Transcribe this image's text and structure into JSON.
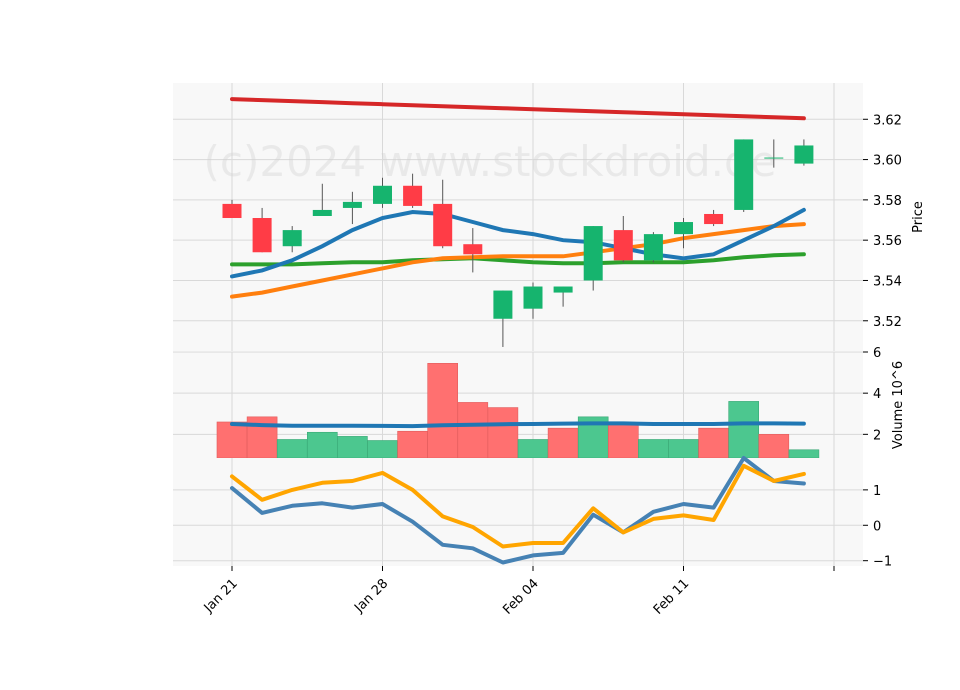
{
  "chart_data": {
    "type": "candlestick",
    "watermark": "(c)2024 www.stockdroid.de",
    "x_tick_labels": [
      "Jan 21",
      "Jan 28",
      "Feb 04",
      "Feb 11"
    ],
    "x_tick_index": [
      0,
      5,
      10,
      15
    ],
    "colors": {
      "up": "#16b46e",
      "down": "#ff3c46",
      "vol_up": "#4cc78f",
      "vol_down": "#ff7070",
      "ma_long": "#d62728",
      "ma_mid": "#2ca02c",
      "ma_short": "#ff7f0e",
      "ma_fast": "#1f77b4",
      "osc_a": "#4682b4",
      "osc_b": "#ffa500",
      "grid": "#d9d9d9",
      "panel_bg": "#f8f8f8"
    },
    "price": {
      "ylabel": "Price",
      "ylim": [
        3.505,
        3.638
      ],
      "yticks": [
        3.52,
        3.54,
        3.56,
        3.58,
        3.6,
        3.62
      ],
      "candles": [
        {
          "o": 3.578,
          "h": 3.58,
          "l": 3.571,
          "c": 3.571
        },
        {
          "o": 3.571,
          "h": 3.576,
          "l": 3.554,
          "c": 3.554
        },
        {
          "o": 3.557,
          "h": 3.567,
          "l": 3.554,
          "c": 3.565
        },
        {
          "o": 3.572,
          "h": 3.588,
          "l": 3.572,
          "c": 3.575
        },
        {
          "o": 3.576,
          "h": 3.584,
          "l": 3.568,
          "c": 3.579
        },
        {
          "o": 3.578,
          "h": 3.591,
          "l": 3.576,
          "c": 3.587
        },
        {
          "o": 3.587,
          "h": 3.593,
          "l": 3.576,
          "c": 3.577
        },
        {
          "o": 3.578,
          "h": 3.59,
          "l": 3.556,
          "c": 3.557
        },
        {
          "o": 3.558,
          "h": 3.566,
          "l": 3.544,
          "c": 3.553
        },
        {
          "o": 3.521,
          "h": 3.535,
          "l": 3.507,
          "c": 3.535
        },
        {
          "o": 3.526,
          "h": 3.539,
          "l": 3.521,
          "c": 3.537
        },
        {
          "o": 3.534,
          "h": 3.537,
          "l": 3.527,
          "c": 3.537
        },
        {
          "o": 3.54,
          "h": 3.567,
          "l": 3.535,
          "c": 3.567
        },
        {
          "o": 3.565,
          "h": 3.572,
          "l": 3.549,
          "c": 3.55
        },
        {
          "o": 3.55,
          "h": 3.564,
          "l": 3.549,
          "c": 3.563
        },
        {
          "o": 3.563,
          "h": 3.571,
          "l": 3.556,
          "c": 3.569
        },
        {
          "o": 3.573,
          "h": 3.575,
          "l": 3.567,
          "c": 3.568
        },
        {
          "o": 3.575,
          "h": 3.61,
          "l": 3.574,
          "c": 3.61
        },
        {
          "o": 3.601,
          "h": 3.61,
          "l": 3.596,
          "c": 3.601
        },
        {
          "o": 3.598,
          "h": 3.61,
          "l": 3.597,
          "c": 3.607
        }
      ],
      "series": [
        {
          "name": "ma_long",
          "values": [
            3.63,
            3.6295,
            3.629,
            3.6285,
            3.628,
            3.6275,
            3.627,
            3.6265,
            3.626,
            3.6255,
            3.625,
            3.6245,
            3.624,
            3.6235,
            3.623,
            3.6225,
            3.622,
            3.6215,
            3.621,
            3.6205
          ]
        },
        {
          "name": "ma_mid",
          "values": [
            3.548,
            3.548,
            3.548,
            3.5485,
            3.549,
            3.549,
            3.55,
            3.5505,
            3.551,
            3.55,
            3.549,
            3.5485,
            3.5485,
            3.549,
            3.549,
            3.549,
            3.55,
            3.5515,
            3.5525,
            3.553
          ]
        },
        {
          "name": "ma_short",
          "values": [
            3.532,
            3.534,
            3.537,
            3.54,
            3.543,
            3.546,
            3.549,
            3.551,
            3.5515,
            3.552,
            3.552,
            3.552,
            3.554,
            3.556,
            3.558,
            3.561,
            3.563,
            3.565,
            3.567,
            3.568
          ]
        },
        {
          "name": "ma_fast",
          "values": [
            3.542,
            3.545,
            3.55,
            3.557,
            3.565,
            3.571,
            3.574,
            3.573,
            3.569,
            3.565,
            3.563,
            3.56,
            3.559,
            3.556,
            3.553,
            3.551,
            3.553,
            3.56,
            3.567,
            3.575
          ]
        }
      ]
    },
    "volume": {
      "ylabel": "Volume  10^6",
      "ylim": [
        0.85,
        6.0
      ],
      "yticks": [
        2,
        4,
        6
      ],
      "bars": [
        2.6,
        2.85,
        1.75,
        2.1,
        1.9,
        1.7,
        2.15,
        5.45,
        3.55,
        3.3,
        1.75,
        2.3,
        2.85,
        2.55,
        1.75,
        1.75,
        2.3,
        3.6,
        2.0,
        1.25
      ],
      "bar_dir": [
        "down",
        "down",
        "up",
        "up",
        "up",
        "up",
        "down",
        "down",
        "down",
        "down",
        "up",
        "down",
        "up",
        "down",
        "up",
        "up",
        "down",
        "up",
        "down",
        "up"
      ],
      "avg": [
        2.5,
        2.45,
        2.42,
        2.42,
        2.42,
        2.41,
        2.4,
        2.44,
        2.47,
        2.49,
        2.5,
        2.52,
        2.53,
        2.53,
        2.5,
        2.5,
        2.5,
        2.53,
        2.53,
        2.52
      ]
    },
    "oscillator": {
      "ylim": [
        -1.15,
        1.9
      ],
      "yticks": [
        -1,
        0,
        1
      ],
      "series_a": [
        1.05,
        0.35,
        0.55,
        0.62,
        0.5,
        0.6,
        0.1,
        -0.55,
        -0.65,
        -1.05,
        -0.85,
        -0.78,
        0.3,
        -0.2,
        0.38,
        0.6,
        0.5,
        1.9,
        1.25,
        1.18
      ],
      "series_b": [
        1.38,
        0.72,
        1.0,
        1.2,
        1.25,
        1.48,
        1.0,
        0.25,
        -0.05,
        -0.6,
        -0.5,
        -0.5,
        0.48,
        -0.2,
        0.18,
        0.28,
        0.15,
        1.68,
        1.25,
        1.45
      ]
    }
  }
}
